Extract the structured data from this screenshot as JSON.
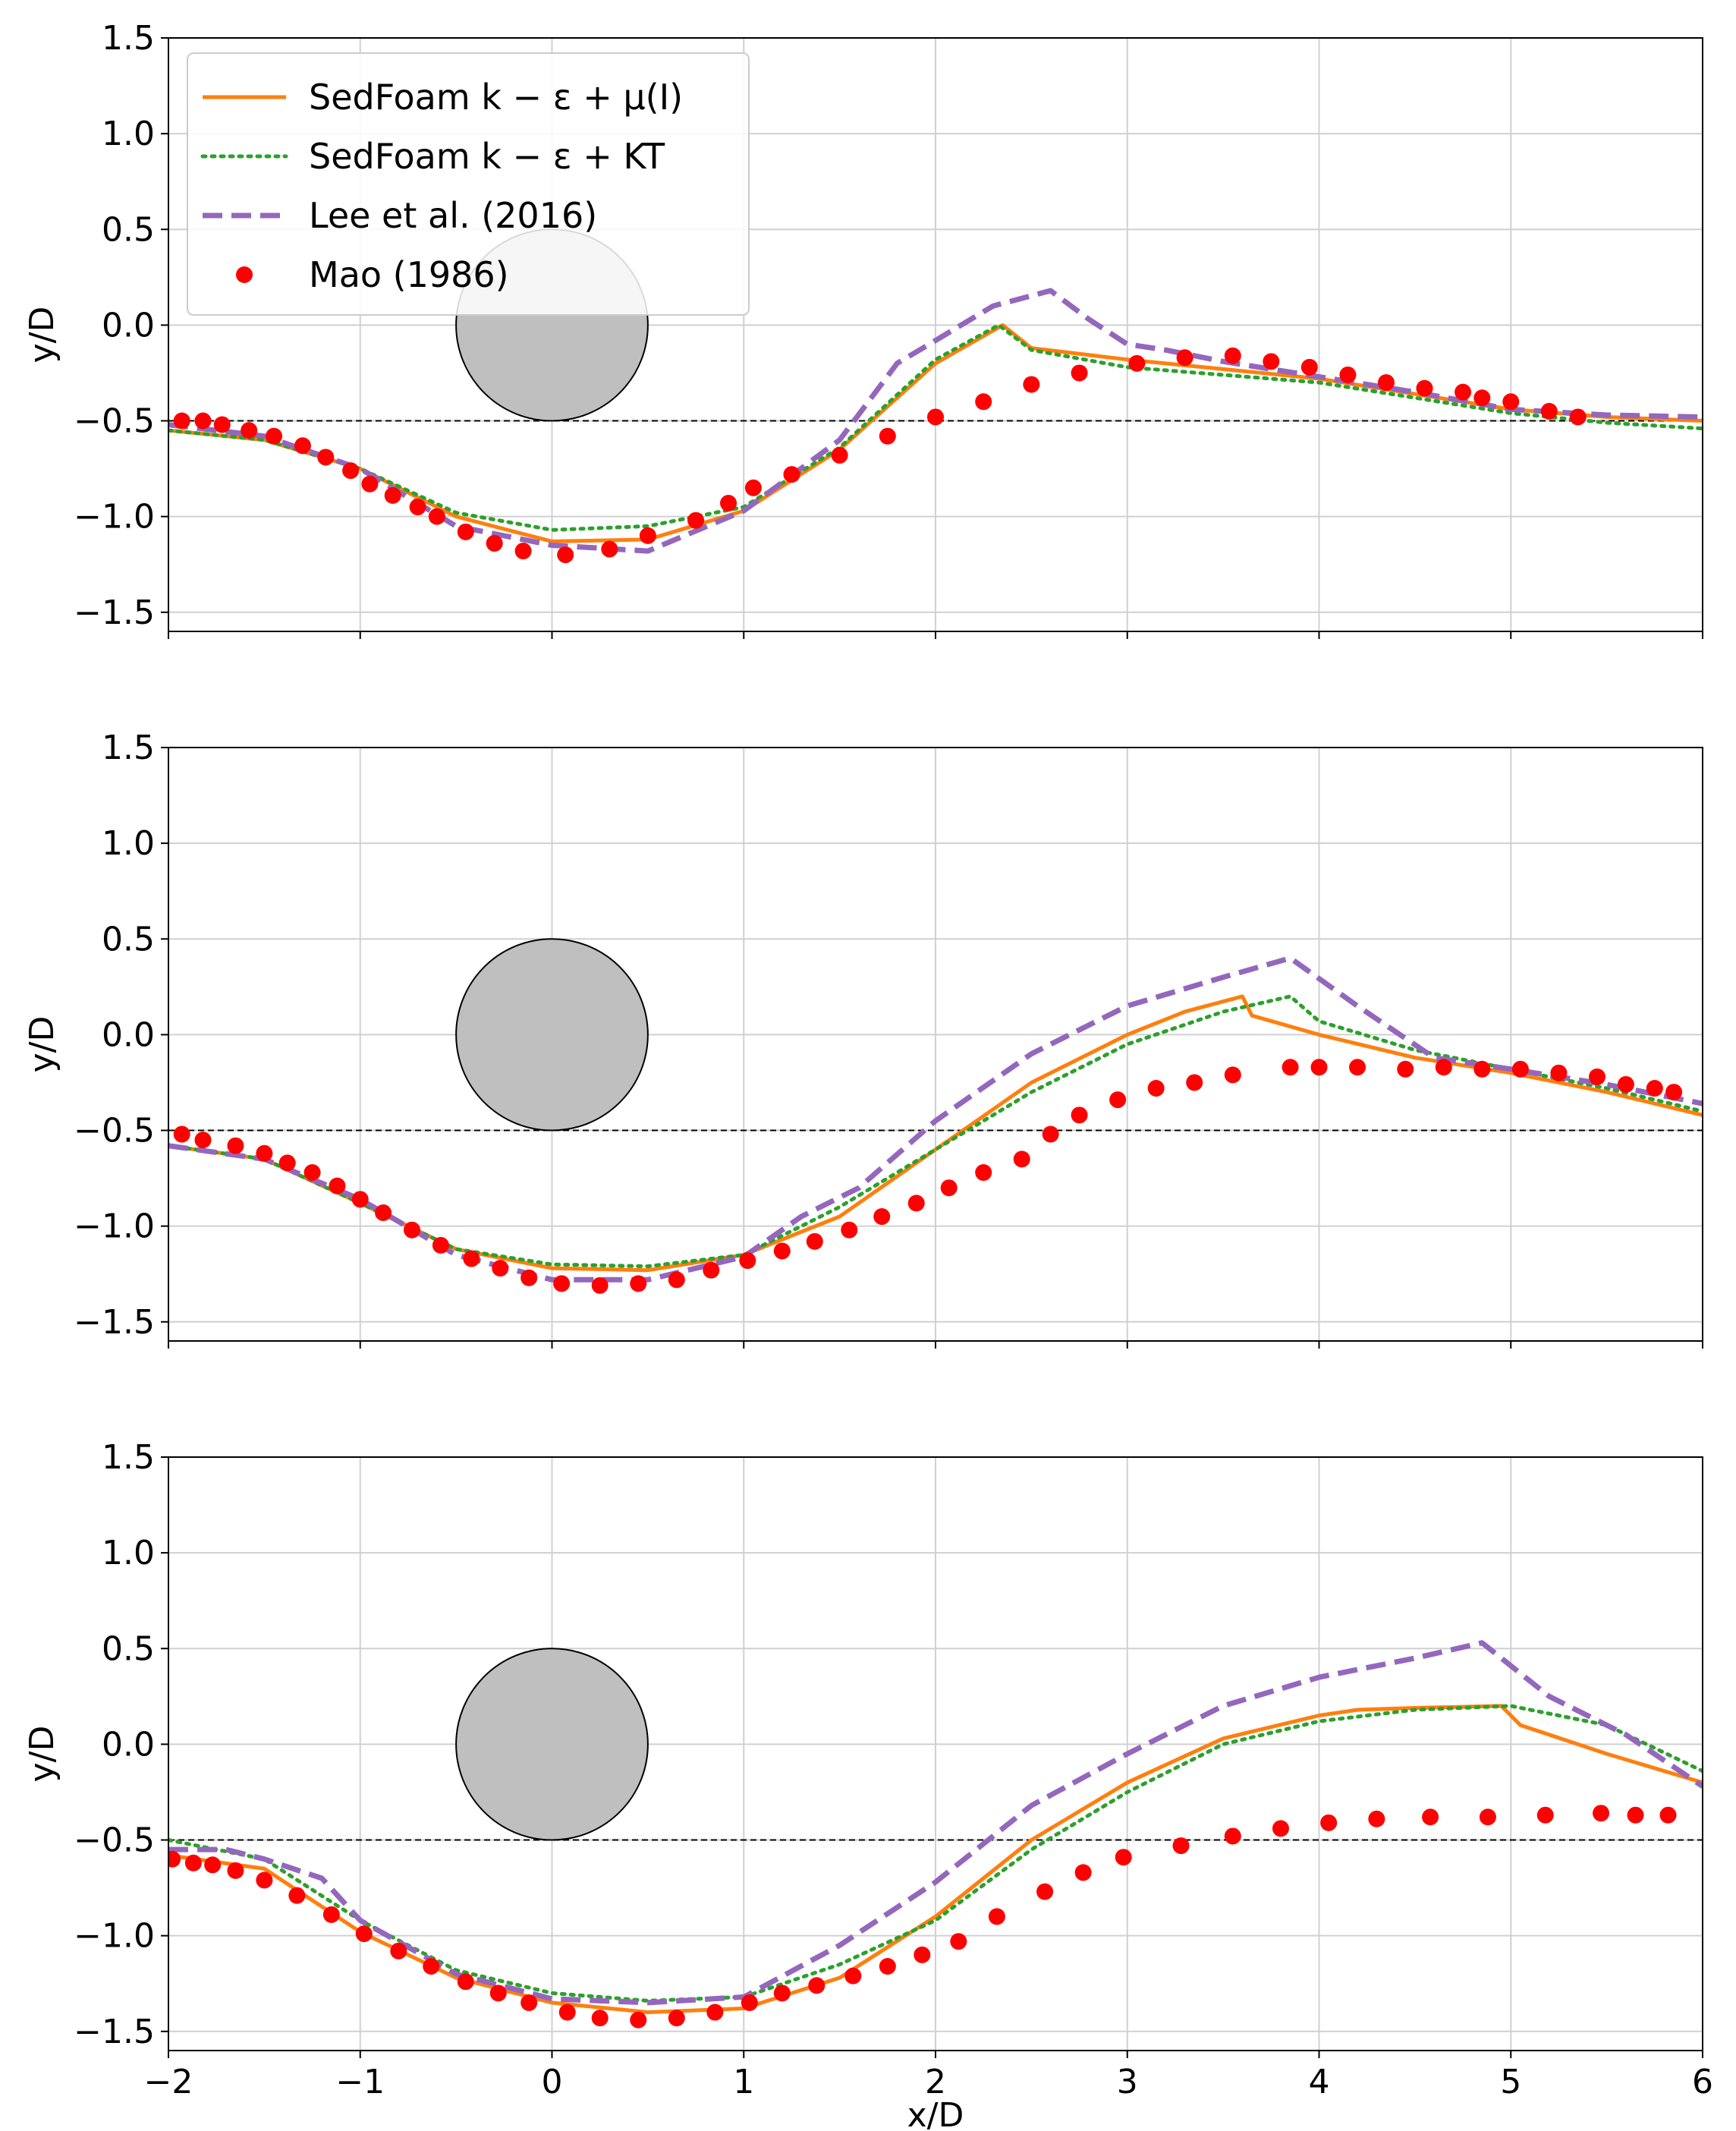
{
  "colors": {
    "sedfoam_mu": "#ff7f0e",
    "sedfoam_kt": "#2ca02c",
    "lee": "#9467bd",
    "mao": "#ff0000",
    "cylinder": "#bfbfbf",
    "grid": "#d0d0d0"
  },
  "chart_data": [
    {
      "type": "line",
      "panel": "top",
      "xlabel": "",
      "ylabel": "y/D",
      "xlim": [
        -2,
        6
      ],
      "ylim": [
        -1.6,
        1.5
      ],
      "grid": true,
      "xticks": [
        -2,
        -1,
        0,
        1,
        2,
        3,
        4,
        5,
        6
      ],
      "yticks": [
        -1.5,
        -1.0,
        -0.5,
        0.0,
        0.5,
        1.0,
        1.5
      ],
      "xtick_labels": [
        "−2",
        "−1",
        "0",
        "1",
        "2",
        "3",
        "4",
        "5",
        "6"
      ],
      "ytick_labels": [
        "−1.5",
        "−1.0",
        "−0.5",
        "0.0",
        "0.5",
        "1.0",
        "1.5"
      ],
      "reference_line_y": -0.5,
      "cylinder": {
        "center_x": 0,
        "center_y": 0,
        "radius": 0.5
      },
      "legend": {
        "placement": "top-left",
        "entries": [
          {
            "label": "SedFoam k − ε + μ(I)",
            "key": "sedfoam_mu"
          },
          {
            "label": "SedFoam k − ε + KT",
            "key": "sedfoam_kt"
          },
          {
            "label": "Lee et al. (2016)",
            "key": "lee"
          },
          {
            "label": "Mao (1986)",
            "key": "mao"
          }
        ]
      },
      "series": [
        {
          "name": "SedFoam k − ε + μ(I)",
          "key": "sedfoam_mu",
          "style": "solid",
          "x": [
            -2,
            -1.5,
            -1,
            -0.5,
            0,
            0.5,
            1,
            1.5,
            2,
            2.35,
            2.5,
            3,
            3.5,
            4,
            4.5,
            5,
            5.5,
            6
          ],
          "y": [
            -0.55,
            -0.6,
            -0.75,
            -1.0,
            -1.13,
            -1.12,
            -0.97,
            -0.65,
            -0.2,
            0.0,
            -0.12,
            -0.18,
            -0.23,
            -0.28,
            -0.36,
            -0.44,
            -0.48,
            -0.5
          ]
        },
        {
          "name": "SedFoam k − ε + KT",
          "key": "sedfoam_kt",
          "style": "dotted",
          "x": [
            -2,
            -1.5,
            -1,
            -0.5,
            0,
            0.5,
            1,
            1.5,
            2,
            2.33,
            2.5,
            3,
            3.5,
            4,
            4.5,
            5,
            5.5,
            6
          ],
          "y": [
            -0.55,
            -0.6,
            -0.75,
            -0.98,
            -1.07,
            -1.05,
            -0.95,
            -0.64,
            -0.18,
            0.0,
            -0.13,
            -0.22,
            -0.26,
            -0.3,
            -0.38,
            -0.46,
            -0.51,
            -0.54
          ]
        },
        {
          "name": "Lee et al. (2016)",
          "key": "lee",
          "style": "dashed",
          "x": [
            -2,
            -1.5,
            -1,
            -0.5,
            0,
            0.5,
            1,
            1.5,
            1.8,
            2,
            2.3,
            2.6,
            2.8,
            3.0,
            3.2,
            3.5,
            4,
            4.5,
            5,
            5.5,
            6
          ],
          "y": [
            -0.52,
            -0.58,
            -0.75,
            -1.05,
            -1.15,
            -1.18,
            -0.97,
            -0.6,
            -0.2,
            -0.08,
            0.1,
            0.18,
            0.03,
            -0.1,
            -0.13,
            -0.19,
            -0.27,
            -0.35,
            -0.44,
            -0.47,
            -0.48
          ]
        },
        {
          "name": "Mao (1986)",
          "key": "mao",
          "style": "markers",
          "x": [
            -1.93,
            -1.82,
            -1.72,
            -1.58,
            -1.45,
            -1.3,
            -1.18,
            -1.05,
            -0.95,
            -0.83,
            -0.7,
            -0.6,
            -0.45,
            -0.3,
            -0.15,
            0.07,
            0.3,
            0.5,
            0.75,
            0.92,
            1.05,
            1.25,
            1.5,
            1.75,
            2.0,
            2.25,
            2.5,
            2.75,
            3.05,
            3.3,
            3.55,
            3.75,
            3.95,
            4.15,
            4.35,
            4.55,
            4.75,
            4.85,
            5.0,
            5.2,
            5.35
          ],
          "y": [
            -0.5,
            -0.5,
            -0.52,
            -0.55,
            -0.58,
            -0.63,
            -0.69,
            -0.76,
            -0.83,
            -0.89,
            -0.95,
            -1.0,
            -1.08,
            -1.14,
            -1.18,
            -1.2,
            -1.17,
            -1.1,
            -1.02,
            -0.93,
            -0.85,
            -0.78,
            -0.68,
            -0.58,
            -0.48,
            -0.4,
            -0.31,
            -0.25,
            -0.2,
            -0.17,
            -0.16,
            -0.19,
            -0.22,
            -0.26,
            -0.3,
            -0.33,
            -0.35,
            -0.38,
            -0.4,
            -0.45,
            -0.48
          ]
        }
      ]
    },
    {
      "type": "line",
      "panel": "middle",
      "xlabel": "",
      "ylabel": "y/D",
      "xlim": [
        -2,
        6
      ],
      "ylim": [
        -1.6,
        1.5
      ],
      "grid": true,
      "xticks": [
        -2,
        -1,
        0,
        1,
        2,
        3,
        4,
        5,
        6
      ],
      "yticks": [
        -1.5,
        -1.0,
        -0.5,
        0.0,
        0.5,
        1.0,
        1.5
      ],
      "xtick_labels": [
        "−2",
        "−1",
        "0",
        "1",
        "2",
        "3",
        "4",
        "5",
        "6"
      ],
      "ytick_labels": [
        "−1.5",
        "−1.0",
        "−0.5",
        "0.0",
        "0.5",
        "1.0",
        "1.5"
      ],
      "reference_line_y": -0.5,
      "cylinder": {
        "center_x": 0,
        "center_y": 0,
        "radius": 0.5
      },
      "series": [
        {
          "name": "SedFoam k − ε + μ(I)",
          "key": "sedfoam_mu",
          "style": "solid",
          "x": [
            -2,
            -1.5,
            -1,
            -0.5,
            0,
            0.5,
            1,
            1.5,
            2,
            2.5,
            3,
            3.3,
            3.6,
            3.65,
            4,
            4.5,
            5,
            5.5,
            6
          ],
          "y": [
            -0.58,
            -0.65,
            -0.88,
            -1.12,
            -1.22,
            -1.23,
            -1.15,
            -0.95,
            -0.6,
            -0.25,
            0.0,
            0.12,
            0.2,
            0.1,
            0.0,
            -0.12,
            -0.2,
            -0.3,
            -0.42
          ]
        },
        {
          "name": "SedFoam k − ε + KT",
          "key": "sedfoam_kt",
          "style": "dotted",
          "x": [
            -2,
            -1.5,
            -1,
            -0.5,
            0,
            0.5,
            1,
            1.5,
            2,
            2.5,
            3,
            3.5,
            3.85,
            4,
            4.5,
            5,
            5.5,
            6
          ],
          "y": [
            -0.58,
            -0.65,
            -0.88,
            -1.12,
            -1.2,
            -1.21,
            -1.15,
            -0.9,
            -0.6,
            -0.3,
            -0.05,
            0.12,
            0.2,
            0.07,
            -0.08,
            -0.18,
            -0.28,
            -0.4
          ]
        },
        {
          "name": "Lee et al. (2016)",
          "key": "lee",
          "style": "dashed",
          "x": [
            -2,
            -1.5,
            -1,
            -0.5,
            0,
            0.5,
            1,
            1.3,
            1.6,
            2,
            2.5,
            3,
            3.5,
            3.85,
            4.2,
            4.6,
            5,
            5.5,
            6
          ],
          "y": [
            -0.58,
            -0.65,
            -0.86,
            -1.15,
            -1.28,
            -1.28,
            -1.16,
            -0.95,
            -0.8,
            -0.45,
            -0.1,
            0.15,
            0.3,
            0.4,
            0.15,
            -0.12,
            -0.18,
            -0.26,
            -0.36
          ]
        },
        {
          "name": "Mao (1986)",
          "key": "mao",
          "style": "markers",
          "x": [
            -1.93,
            -1.82,
            -1.65,
            -1.5,
            -1.38,
            -1.25,
            -1.12,
            -1.0,
            -0.88,
            -0.73,
            -0.58,
            -0.42,
            -0.27,
            -0.12,
            0.05,
            0.25,
            0.45,
            0.65,
            0.83,
            1.02,
            1.2,
            1.37,
            1.55,
            1.72,
            1.9,
            2.07,
            2.25,
            2.45,
            2.6,
            2.75,
            2.95,
            3.15,
            3.35,
            3.55,
            3.85,
            4.0,
            4.2,
            4.45,
            4.65,
            4.85,
            5.05,
            5.25,
            5.45,
            5.6,
            5.75,
            5.85
          ],
          "y": [
            -0.52,
            -0.55,
            -0.58,
            -0.62,
            -0.67,
            -0.72,
            -0.79,
            -0.86,
            -0.93,
            -1.02,
            -1.1,
            -1.17,
            -1.22,
            -1.27,
            -1.3,
            -1.31,
            -1.3,
            -1.28,
            -1.23,
            -1.18,
            -1.13,
            -1.08,
            -1.02,
            -0.95,
            -0.88,
            -0.8,
            -0.72,
            -0.65,
            -0.52,
            -0.42,
            -0.34,
            -0.28,
            -0.25,
            -0.21,
            -0.17,
            -0.17,
            -0.17,
            -0.18,
            -0.17,
            -0.18,
            -0.18,
            -0.2,
            -0.22,
            -0.26,
            -0.28,
            -0.3
          ]
        }
      ]
    },
    {
      "type": "line",
      "panel": "bottom",
      "xlabel": "x/D",
      "ylabel": "y/D",
      "xlim": [
        -2,
        6
      ],
      "ylim": [
        -1.6,
        1.5
      ],
      "grid": true,
      "xticks": [
        -2,
        -1,
        0,
        1,
        2,
        3,
        4,
        5,
        6
      ],
      "yticks": [
        -1.5,
        -1.0,
        -0.5,
        0.0,
        0.5,
        1.0,
        1.5
      ],
      "xtick_labels": [
        "−2",
        "−1",
        "0",
        "1",
        "2",
        "3",
        "4",
        "5",
        "6"
      ],
      "ytick_labels": [
        "−1.5",
        "−1.0",
        "−0.5",
        "0.0",
        "0.5",
        "1.0",
        "1.5"
      ],
      "reference_line_y": -0.5,
      "cylinder": {
        "center_x": 0,
        "center_y": 0,
        "radius": 0.5
      },
      "series": [
        {
          "name": "SedFoam k − ε + μ(I)",
          "key": "sedfoam_mu",
          "style": "solid",
          "x": [
            -2,
            -1.5,
            -1,
            -0.5,
            0,
            0.5,
            1,
            1.5,
            2,
            2.5,
            3,
            3.5,
            4,
            4.2,
            4.5,
            4.95,
            5.05,
            5.5,
            6
          ],
          "y": [
            -0.58,
            -0.65,
            -0.98,
            -1.22,
            -1.35,
            -1.4,
            -1.38,
            -1.22,
            -0.9,
            -0.5,
            -0.2,
            0.03,
            0.15,
            0.18,
            0.19,
            0.2,
            0.1,
            -0.05,
            -0.2
          ]
        },
        {
          "name": "SedFoam k − ε + KT",
          "key": "sedfoam_kt",
          "style": "dotted",
          "x": [
            -2,
            -1.5,
            -1,
            -0.5,
            0,
            0.5,
            1,
            1.5,
            2,
            2.5,
            3,
            3.5,
            4,
            4.5,
            5,
            5.5,
            6
          ],
          "y": [
            -0.5,
            -0.6,
            -0.92,
            -1.18,
            -1.3,
            -1.34,
            -1.32,
            -1.15,
            -0.92,
            -0.55,
            -0.25,
            0.0,
            0.12,
            0.18,
            0.2,
            0.1,
            -0.14
          ]
        },
        {
          "name": "Lee et al. (2016)",
          "key": "lee",
          "style": "dashed",
          "x": [
            -2,
            -1.7,
            -1.5,
            -1.2,
            -1,
            -0.5,
            0,
            0.5,
            1,
            1.5,
            2,
            2.5,
            3,
            3.5,
            4,
            4.5,
            4.85,
            5.2,
            5.6,
            6
          ],
          "y": [
            -0.55,
            -0.55,
            -0.6,
            -0.7,
            -0.92,
            -1.2,
            -1.33,
            -1.35,
            -1.32,
            -1.05,
            -0.72,
            -0.32,
            -0.05,
            0.2,
            0.35,
            0.45,
            0.53,
            0.25,
            0.05,
            -0.22
          ]
        },
        {
          "name": "Mao (1986)",
          "key": "mao",
          "style": "markers",
          "x": [
            -1.98,
            -1.87,
            -1.77,
            -1.65,
            -1.5,
            -1.33,
            -1.15,
            -0.98,
            -0.8,
            -0.63,
            -0.45,
            -0.28,
            -0.12,
            0.08,
            0.25,
            0.45,
            0.65,
            0.85,
            1.03,
            1.2,
            1.38,
            1.57,
            1.75,
            1.93,
            2.12,
            2.32,
            2.57,
            2.77,
            2.98,
            3.28,
            3.55,
            3.8,
            4.05,
            4.3,
            4.58,
            4.88,
            5.18,
            5.47,
            5.65,
            5.82
          ],
          "y": [
            -0.6,
            -0.62,
            -0.63,
            -0.66,
            -0.71,
            -0.79,
            -0.89,
            -0.99,
            -1.08,
            -1.16,
            -1.24,
            -1.3,
            -1.35,
            -1.4,
            -1.43,
            -1.44,
            -1.43,
            -1.4,
            -1.35,
            -1.3,
            -1.26,
            -1.21,
            -1.16,
            -1.1,
            -1.03,
            -0.9,
            -0.77,
            -0.67,
            -0.59,
            -0.53,
            -0.48,
            -0.44,
            -0.41,
            -0.39,
            -0.38,
            -0.38,
            -0.37,
            -0.36,
            -0.37,
            -0.37
          ]
        }
      ]
    }
  ]
}
